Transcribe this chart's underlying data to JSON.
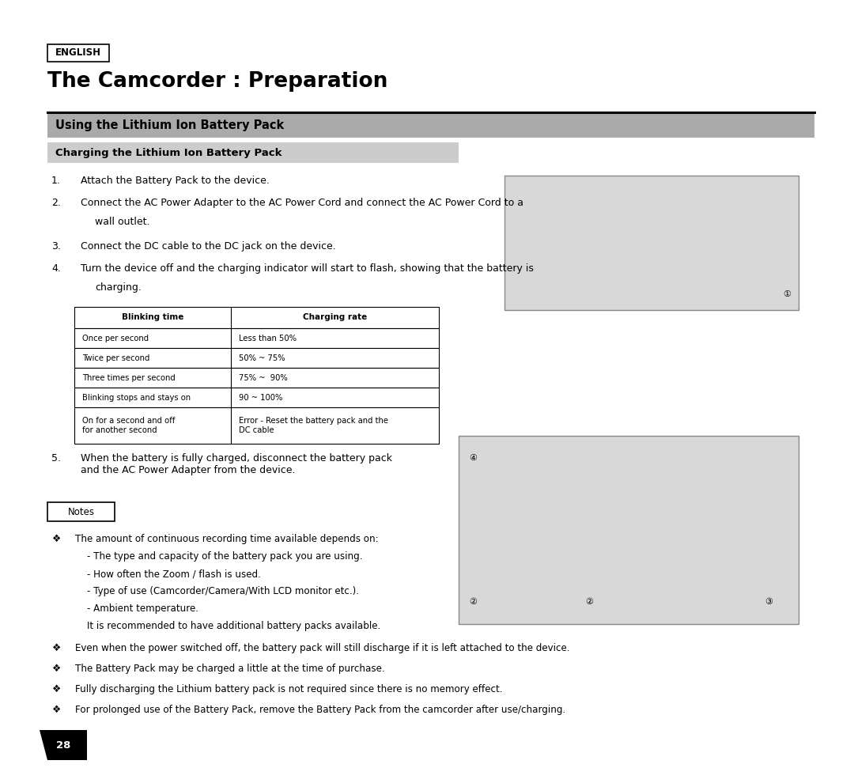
{
  "bg_color": "#ffffff",
  "page_width": 10.8,
  "page_height": 9.71,
  "english_label": "ENGLISH",
  "main_title": "The Camcorder : Preparation",
  "section1_title": "Using the Lithium Ion Battery Pack",
  "section2_title": "Charging the Lithium Ion Battery Pack",
  "steps": [
    "Attach the Battery Pack to the device.",
    "Connect the AC Power Adapter to the AC Power Cord and connect the AC Power Cord to a wall outlet.",
    "Connect the DC cable to the DC jack on the device.",
    "Turn the device off and the charging indicator will start to flash, showing that the battery is charging."
  ],
  "step5": "When the battery is fully charged, disconnect the battery pack\nand the AC Power Adapter from the device.",
  "table_headers": [
    "Blinking time",
    "Charging rate"
  ],
  "table_rows": [
    [
      "Once per second",
      "Less than 50%"
    ],
    [
      "Twice per second",
      "50% ~ 75%"
    ],
    [
      "Three times per second",
      "75% ~  90%"
    ],
    [
      "Blinking stops and stays on",
      "90 ~ 100%"
    ],
    [
      "On for a second and off\nfor another second",
      "Error - Reset the battery pack and the\nDC cable"
    ]
  ],
  "notes_label": "Notes",
  "bullet_notes": [
    "The amount of continuous recording time available depends on:\n- The type and capacity of the battery pack you are using.\n- How often the Zoom / flash is used.\n- Type of use (Camcorder/Camera/With LCD monitor etc.).\n- Ambient temperature.\nIt is recommended to have additional battery packs available.",
    "Even when the power switched off, the battery pack will still discharge if it is left attached to the device.",
    "The Battery Pack may be charged a little at the time of purchase.",
    "Fully discharging the Lithium battery pack is not required since there is no memory effect.",
    "For prolonged use of the Battery Pack, remove the Battery Pack from the camcorder after use/charging."
  ],
  "page_number": "28",
  "section1_bg": "#aaaaaa",
  "section2_bg": "#cccccc",
  "table_border_color": "#000000",
  "text_color": "#000000"
}
